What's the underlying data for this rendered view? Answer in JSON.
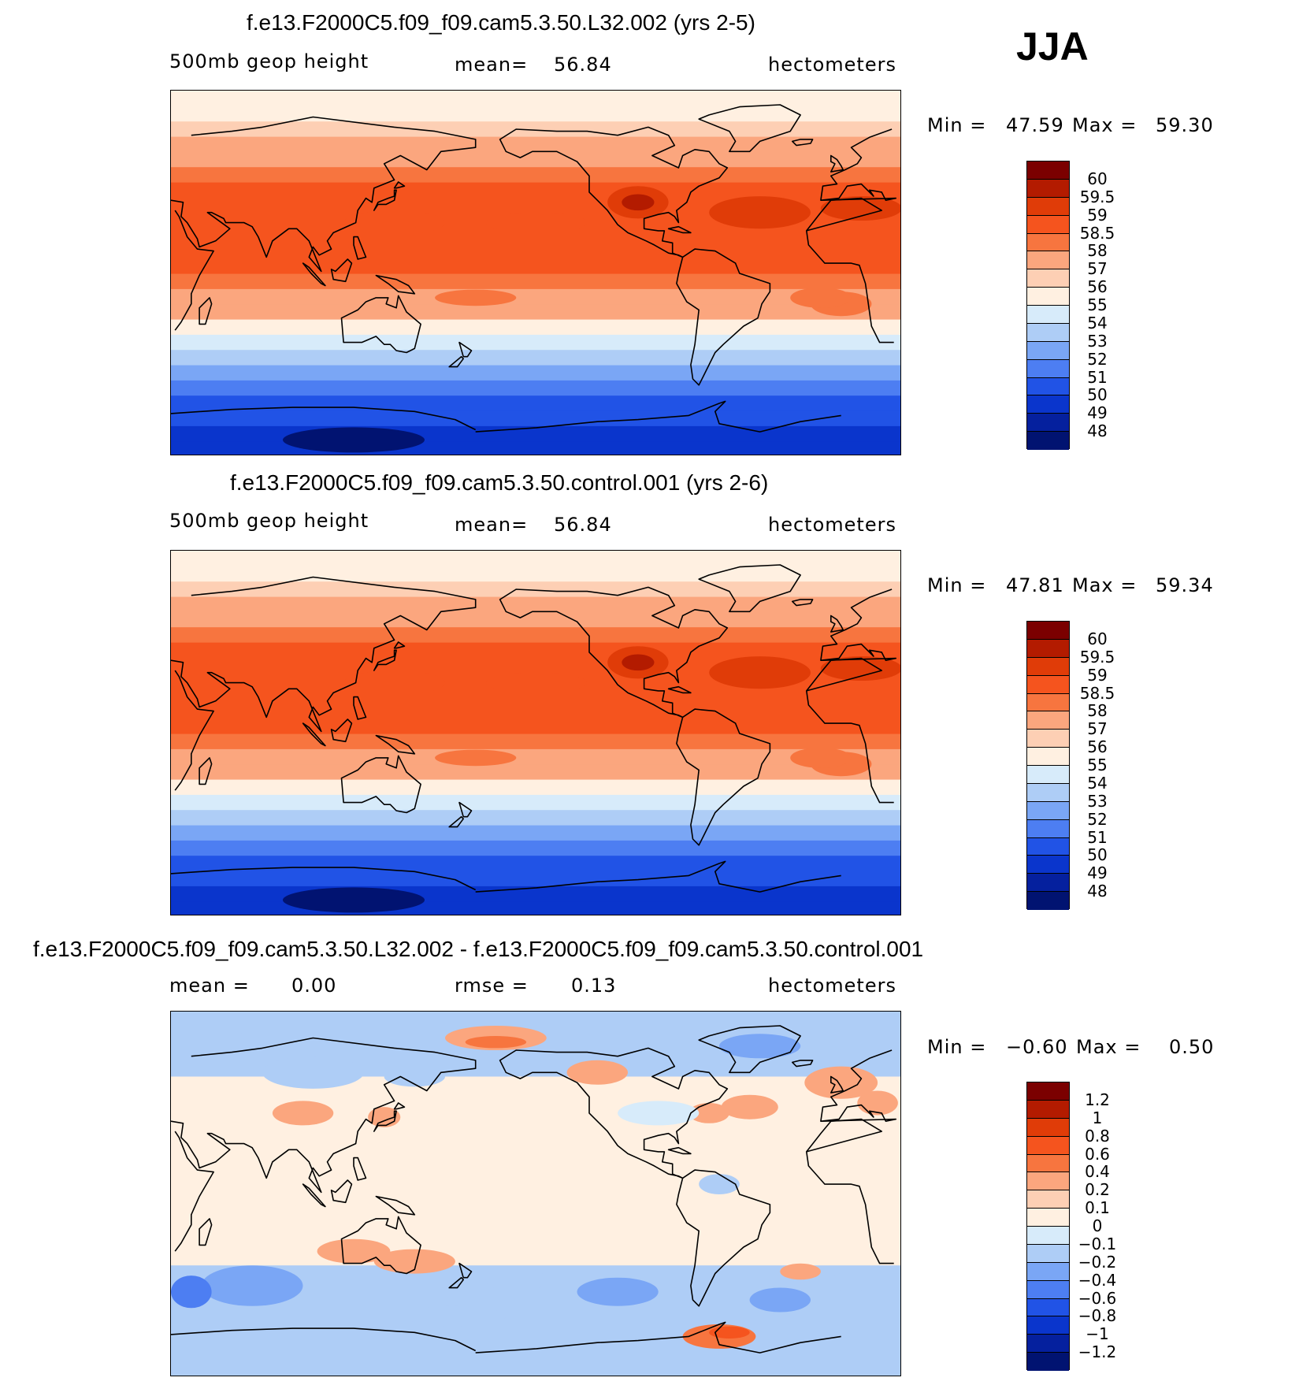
{
  "season": "JJA",
  "coastline_color": "#000000",
  "chart_data": [
    {
      "type": "heatmap",
      "title": "f.e13.F2000C5.f09_f09.cam5.3.50.L32.002 (yrs 2-5)",
      "variable": "500mb  geop  height",
      "mean_label": "mean=",
      "mean_value": "56.84",
      "units": "hectometers",
      "min_label": "Min =",
      "min_value": "47.59",
      "max_label": "Max =",
      "max_value": "59.30",
      "levels": [
        "60",
        "59.5",
        "59",
        "58.5",
        "58",
        "57",
        "56",
        "55",
        "54",
        "53",
        "52",
        "51",
        "50",
        "49",
        "48"
      ],
      "colors": [
        "#7b0000",
        "#b31b00",
        "#e03c08",
        "#f5541e",
        "#f7753f",
        "#fba67e",
        "#fdcfb4",
        "#fff0e1",
        "#d7ebfa",
        "#aecdf6",
        "#7aa6f5",
        "#4d7ef2",
        "#2153e6",
        "#0a35cc",
        "#05209e",
        "#011371"
      ],
      "zonal_profile": [
        49.2,
        49.6,
        50.1,
        50.7,
        51.5,
        52.3,
        53.2,
        54.3,
        55.8,
        57.2,
        57.9,
        58.4,
        58.6,
        58.7,
        58.8,
        58.8,
        58.7,
        58.5,
        58.2,
        57.7,
        57.1,
        56.3,
        55.6,
        55.1
      ]
    },
    {
      "type": "heatmap",
      "title": "f.e13.F2000C5.f09_f09.cam5.3.50.control.001 (yrs 2-6)",
      "variable": "500mb  geop  height",
      "mean_label": "mean=",
      "mean_value": "56.84",
      "units": "hectometers",
      "min_label": "Min =",
      "min_value": "47.81",
      "max_label": "Max =",
      "max_value": "59.34",
      "levels": [
        "60",
        "59.5",
        "59",
        "58.5",
        "58",
        "57",
        "56",
        "55",
        "54",
        "53",
        "52",
        "51",
        "50",
        "49",
        "48"
      ],
      "colors": [
        "#7b0000",
        "#b31b00",
        "#e03c08",
        "#f5541e",
        "#f7753f",
        "#fba67e",
        "#fdcfb4",
        "#fff0e1",
        "#d7ebfa",
        "#aecdf6",
        "#7aa6f5",
        "#4d7ef2",
        "#2153e6",
        "#0a35cc",
        "#05209e",
        "#011371"
      ],
      "zonal_profile": [
        49.3,
        49.7,
        50.2,
        50.8,
        51.6,
        52.4,
        53.3,
        54.4,
        55.9,
        57.3,
        57.9,
        58.4,
        58.6,
        58.7,
        58.8,
        58.8,
        58.7,
        58.5,
        58.2,
        57.7,
        57.1,
        56.4,
        55.7,
        55.2
      ]
    },
    {
      "type": "heatmap",
      "title": "f.e13.F2000C5.f09_f09.cam5.3.50.L32.002 - f.e13.F2000C5.f09_f09.cam5.3.50.control.001",
      "mean_label": "mean =",
      "mean_value": "0.00",
      "rmse_label": "rmse =",
      "rmse_value": "0.13",
      "units": "hectometers",
      "min_label": "Min =",
      "min_value": "−0.60",
      "max_label": "Max =",
      "max_value": "0.50",
      "levels": [
        "1.2",
        "1",
        "0.8",
        "0.6",
        "0.4",
        "0.2",
        "0.1",
        "0",
        "−0.1",
        "−0.2",
        "−0.4",
        "−0.6",
        "−0.8",
        "−1",
        "−1.2"
      ],
      "colors": [
        "#7b0000",
        "#b31b00",
        "#e03c08",
        "#f5541e",
        "#f7753f",
        "#fba67e",
        "#fdcfb4",
        "#fff0e1",
        "#d7ebfa",
        "#aecdf6",
        "#7aa6f5",
        "#4d7ef2",
        "#2153e6",
        "#0a35cc",
        "#05209e",
        "#011371"
      ]
    }
  ]
}
